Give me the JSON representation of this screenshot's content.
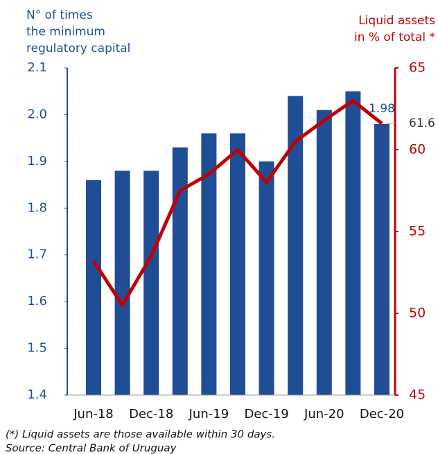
{
  "chart_data": {
    "type": "bar_line",
    "y_label": [
      "N° of times",
      "the minimum",
      "regulatory capital"
    ],
    "y2_label": [
      "Liquid assets",
      "in % of total *"
    ],
    "categories": [
      "Jun-18",
      null,
      "Dec-18",
      null,
      "Jun-19",
      null,
      "Dec-19",
      null,
      "Jun-20",
      null,
      "Dec-20"
    ],
    "series": [
      {
        "type": "bar",
        "color": "#1f4e96",
        "values": [
          1.86,
          1.88,
          1.88,
          1.93,
          1.96,
          1.96,
          1.9,
          2.04,
          2.01,
          2.05,
          1.98
        ]
      },
      {
        "type": "line",
        "axis": "y2",
        "color": "#c00000",
        "values": [
          53.2,
          50.5,
          53.5,
          57.5,
          58.5,
          60.0,
          58.0,
          60.5,
          61.8,
          63.0,
          61.6
        ]
      }
    ],
    "ylim": [
      1.4,
      2.1
    ],
    "yticks": [
      1.4,
      1.5,
      1.6,
      1.7,
      1.8,
      1.9,
      {
        "value": 2,
        "label": "2.0"
      },
      2.1
    ],
    "y2lim": [
      45,
      65
    ],
    "y2ticks": [
      45,
      50,
      55,
      60,
      65
    ],
    "notes": [
      "(*) Liquid assets are those available within 30 days.",
      "Source: Central Bank of Uruguay"
    ]
  }
}
